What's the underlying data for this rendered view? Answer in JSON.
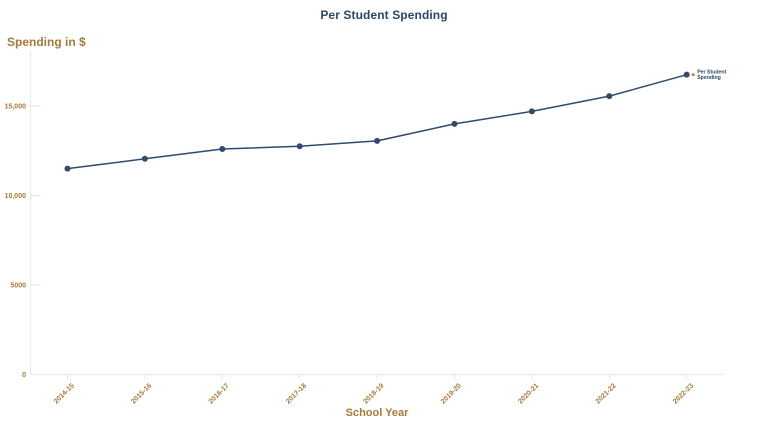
{
  "chart_data": {
    "type": "line",
    "title": "Per Student Spending",
    "xlabel": "School Year",
    "ylabel": "Spending in $",
    "categories": [
      "2014-15",
      "2015-16",
      "2016-17",
      "2017-18",
      "2018-19",
      "2019-20",
      "2020-21",
      "2021-22",
      "2022-23"
    ],
    "series": [
      {
        "name": "Per Student Spending",
        "values": [
          11500,
          12050,
          12600,
          12750,
          13050,
          14000,
          14700,
          15550,
          16750
        ]
      }
    ],
    "ylim": [
      0,
      17500
    ],
    "yticks": [
      {
        "value": 0,
        "label": "0"
      },
      {
        "value": 5000,
        "label": "5000"
      },
      {
        "value": 10000,
        "label": "10,000"
      },
      {
        "value": 15000,
        "label": "15,000"
      }
    ],
    "grid": false,
    "legend_position": "end-of-line-annotation",
    "end_label_lines": [
      "Per Student",
      "Spending"
    ],
    "colors": {
      "line": "#2f4b6d",
      "marker": "#2f4b6d",
      "title": "#2b466a",
      "axis_text": "#a5793f",
      "axis_line": "#ececec",
      "tick_line": "#e3e3e3",
      "annotation_leader": "#b5852f"
    }
  }
}
